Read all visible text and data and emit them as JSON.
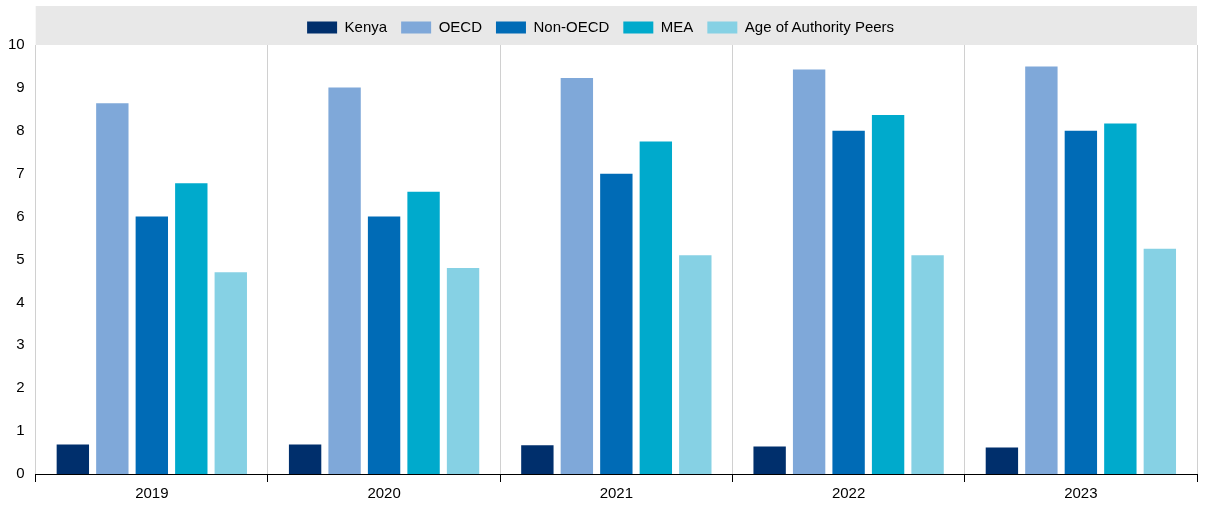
{
  "chart_data": {
    "type": "bar",
    "categories": [
      "2019",
      "2020",
      "2021",
      "2022",
      "2023"
    ],
    "series": [
      {
        "name": "Kenya",
        "color": "#002f6c",
        "values": [
          0.69,
          0.69,
          0.67,
          0.64,
          0.62
        ]
      },
      {
        "name": "OECD",
        "color": "#7fa8d9",
        "values": [
          8.64,
          9.01,
          9.23,
          9.43,
          9.5
        ]
      },
      {
        "name": "Non-OECD",
        "color": "#006bb6",
        "values": [
          6,
          6,
          7,
          8,
          8
        ]
      },
      {
        "name": "MEA",
        "color": "#00aacc",
        "values": [
          6.78,
          6.58,
          7.75,
          8.37,
          8.17
        ]
      },
      {
        "name": "Age of Authority Peers",
        "color": "#86d1e4",
        "values": [
          4.7,
          4.8,
          5.1,
          5.1,
          5.25
        ]
      }
    ],
    "ylim": [
      0,
      10
    ],
    "yticks": [
      0,
      1,
      2,
      3,
      4,
      5,
      6,
      7,
      8,
      9,
      10
    ],
    "grid": "x",
    "legend": "top"
  }
}
